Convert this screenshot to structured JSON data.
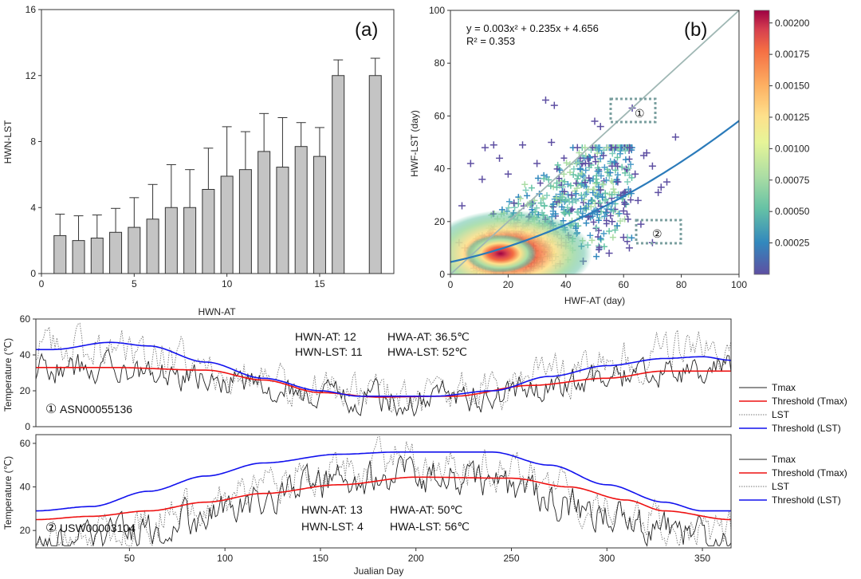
{
  "chart_data": [
    {
      "type": "bar",
      "panel": "(a)",
      "xlabel": "HWN-AT",
      "ylabel": "HWN-LST",
      "xlim": [
        0,
        19
      ],
      "ylim": [
        0,
        16
      ],
      "xticks": [
        0,
        5,
        10,
        15
      ],
      "yticks": [
        0,
        4,
        8,
        12,
        16
      ],
      "x": [
        1,
        2,
        3,
        4,
        5,
        6,
        7,
        8,
        9,
        10,
        11,
        12,
        13,
        14,
        15,
        16,
        18
      ],
      "values": [
        2.3,
        2.0,
        2.15,
        2.5,
        2.8,
        3.3,
        4.0,
        4.0,
        5.1,
        5.9,
        6.3,
        7.4,
        6.45,
        7.7,
        7.1,
        12.0,
        12.0
      ],
      "errors": [
        1.3,
        1.5,
        1.4,
        1.45,
        1.8,
        2.1,
        2.6,
        2.3,
        2.5,
        3.0,
        2.3,
        2.3,
        3.0,
        1.45,
        1.75,
        0.95,
        1.05
      ]
    },
    {
      "type": "scatter",
      "panel": "(b)",
      "xlabel": "HWF-AT (day)",
      "ylabel": "HWF-LST (day)",
      "xlim": [
        0,
        100
      ],
      "ylim": [
        0,
        100
      ],
      "xticks": [
        0,
        20,
        40,
        60,
        80,
        100
      ],
      "yticks": [
        0,
        20,
        40,
        60,
        80,
        100
      ],
      "equation": "y = 0.003x² + 0.235x + 4.656",
      "r2": "R² = 0.353",
      "fit": {
        "a": 0.003,
        "b": 0.235,
        "c": 4.656
      },
      "colorbar_ticks": [
        "0.00200",
        "0.00175",
        "0.00150",
        "0.00125",
        "0.00100",
        "0.00075",
        "0.00050",
        "0.00025"
      ],
      "marker1": "①",
      "marker2": "②",
      "outlier_points": [
        [
          33,
          66
        ],
        [
          36,
          64
        ],
        [
          63,
          63
        ],
        [
          62,
          48
        ],
        [
          67,
          45
        ],
        [
          70,
          41
        ],
        [
          68,
          46
        ],
        [
          78,
          52
        ],
        [
          75,
          35
        ],
        [
          73,
          33
        ],
        [
          72,
          31
        ],
        [
          66,
          19
        ],
        [
          70,
          12
        ],
        [
          62,
          10
        ],
        [
          60,
          14
        ],
        [
          55,
          8
        ],
        [
          7,
          42
        ],
        [
          4,
          26
        ],
        [
          12,
          48
        ],
        [
          15,
          49
        ],
        [
          17,
          44
        ],
        [
          25,
          49
        ],
        [
          30,
          42
        ],
        [
          45,
          44
        ],
        [
          50,
          58
        ],
        [
          52,
          56
        ],
        [
          53,
          45
        ],
        [
          48,
          42
        ],
        [
          58,
          35
        ],
        [
          65,
          28
        ],
        [
          56,
          20
        ],
        [
          46,
          5
        ],
        [
          38,
          4
        ],
        [
          28,
          3
        ],
        [
          8,
          5
        ],
        [
          5,
          10
        ],
        [
          3,
          12
        ],
        [
          11,
          36
        ],
        [
          20,
          38
        ],
        [
          22,
          27
        ],
        [
          40,
          12
        ],
        [
          42,
          30
        ],
        [
          52,
          32
        ],
        [
          60,
          24
        ],
        [
          64,
          38
        ],
        [
          35,
          50
        ],
        [
          44,
          48
        ],
        [
          56,
          41
        ],
        [
          59,
          30
        ],
        [
          48,
          22
        ]
      ]
    },
    {
      "type": "line",
      "panel": "station-1",
      "station": "ASN00055136",
      "marker": "①",
      "ylabel": "Temperature (℃)",
      "xlim": [
        1,
        365
      ],
      "ylim": [
        0,
        60
      ],
      "yticks": [
        0,
        20,
        40,
        60
      ],
      "annotation": {
        "hwn_at": "HWN-AT:  12",
        "hwa_at": "HWA-AT:   36.5℃",
        "hwn_lst": "HWN-LST:  11",
        "hwa_lst": "HWA-LST:  52℃"
      },
      "series": [
        {
          "name": "Tmax",
          "color": "#222222",
          "base": {
            "amp": 9,
            "mean": 24,
            "peak": 0,
            "n": 6
          }
        },
        {
          "name": "Threshold (Tmax)",
          "color": "#ee1111",
          "knots": [
            [
              1,
              33
            ],
            [
              40,
              33
            ],
            [
              90,
              31.5
            ],
            [
              120,
              26
            ],
            [
              150,
              19
            ],
            [
              180,
              16.5
            ],
            [
              220,
              17
            ],
            [
              260,
              23
            ],
            [
              300,
              27
            ],
            [
              330,
              31
            ],
            [
              365,
              31
            ]
          ]
        },
        {
          "name": "LST",
          "color": "#777777",
          "base": {
            "amp": 14,
            "mean": 31,
            "peak": 0,
            "n": 8
          }
        },
        {
          "name": "Threshold (LST)",
          "color": "#1111ee",
          "knots": [
            [
              1,
              43
            ],
            [
              10,
              43
            ],
            [
              40,
              47
            ],
            [
              60,
              45
            ],
            [
              90,
              36
            ],
            [
              120,
              27
            ],
            [
              150,
              20
            ],
            [
              170,
              17
            ],
            [
              210,
              17
            ],
            [
              240,
              20
            ],
            [
              270,
              28
            ],
            [
              300,
              34
            ],
            [
              330,
              38
            ],
            [
              350,
              39
            ],
            [
              365,
              37
            ]
          ]
        }
      ]
    },
    {
      "type": "line",
      "panel": "station-2",
      "station": "USW00003104",
      "marker": "②",
      "xlabel": "Jualian Day",
      "ylabel": "Temperature (℃)",
      "xlim": [
        1,
        365
      ],
      "ylim": [
        12,
        64
      ],
      "xticks": [
        50,
        100,
        150,
        200,
        250,
        300,
        350
      ],
      "yticks": [
        20,
        40,
        60
      ],
      "annotation": {
        "hwn_at": "HWN-AT:  13",
        "hwa_at": "HWA-AT:    50℃",
        "hwn_lst": "HWN-LST:  4",
        "hwa_lst": "HWA-LST:  56℃"
      },
      "series": [
        {
          "name": "Tmax",
          "color": "#222222",
          "base": {
            "amp": 15,
            "mean": 30,
            "peak": 195,
            "n": 6
          }
        },
        {
          "name": "Threshold (Tmax)",
          "color": "#ee1111",
          "knots": [
            [
              1,
              25
            ],
            [
              30,
              26.5
            ],
            [
              60,
              29
            ],
            [
              90,
              33
            ],
            [
              120,
              37
            ],
            [
              160,
              41
            ],
            [
              200,
              44.5
            ],
            [
              250,
              44
            ],
            [
              280,
              40
            ],
            [
              310,
              34
            ],
            [
              330,
              29
            ],
            [
              365,
              25
            ]
          ]
        },
        {
          "name": "LST",
          "color": "#777777",
          "base": {
            "amp": 18,
            "mean": 35,
            "peak": 195,
            "n": 7
          }
        },
        {
          "name": "Threshold (LST)",
          "color": "#1111ee",
          "knots": [
            [
              1,
              29
            ],
            [
              30,
              31
            ],
            [
              60,
              38
            ],
            [
              90,
              45
            ],
            [
              120,
              51
            ],
            [
              160,
              55
            ],
            [
              190,
              56
            ],
            [
              240,
              56
            ],
            [
              270,
              50
            ],
            [
              300,
              41
            ],
            [
              330,
              33
            ],
            [
              350,
              29
            ],
            [
              365,
              29
            ]
          ]
        }
      ]
    }
  ]
}
